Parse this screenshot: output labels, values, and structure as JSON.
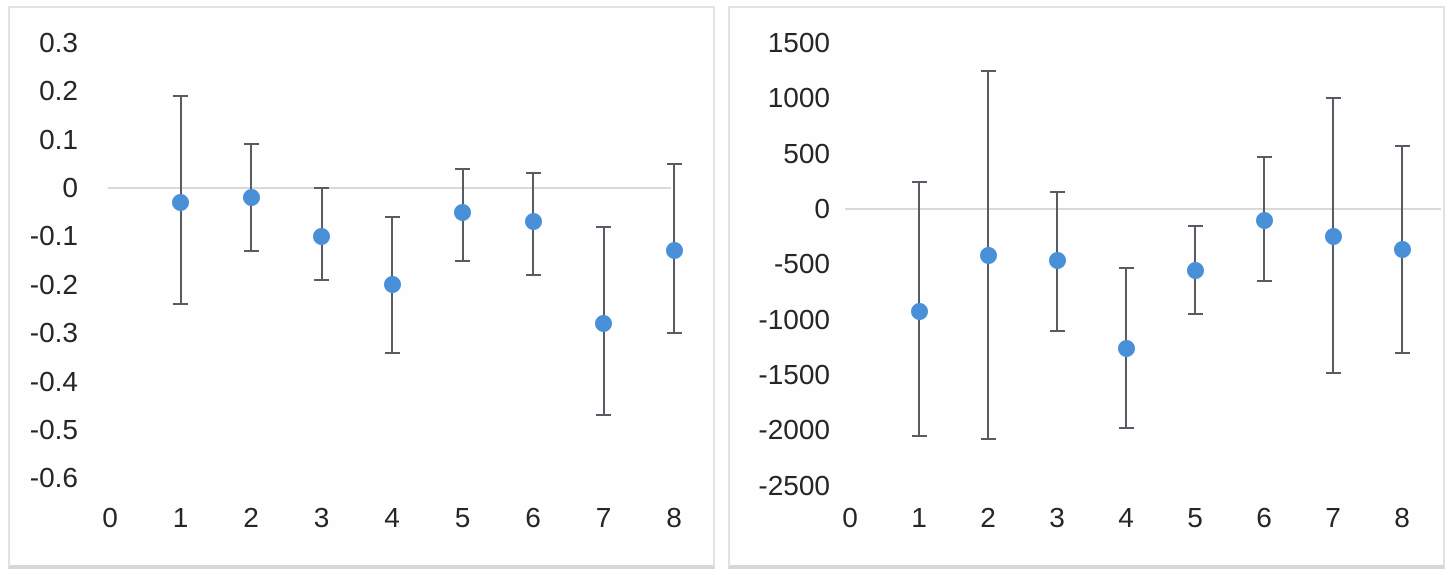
{
  "page": {
    "background": "#ffffff"
  },
  "colors": {
    "marker": "#4a90d8",
    "error_bar": "#585c62",
    "zero_gridline": "#d9d9d9",
    "panel_border": "#e4e1e4",
    "tick_text": "#262626"
  },
  "chart_data": [
    {
      "type": "scatter",
      "title": "",
      "xlabel": "",
      "ylabel": "",
      "legend": "none",
      "grid": "zero-line-only",
      "xlim": [
        0,
        8
      ],
      "ylim": [
        -0.6,
        0.3
      ],
      "xticks": [
        "0",
        "1",
        "2",
        "3",
        "4",
        "5",
        "6",
        "7",
        "8"
      ],
      "yticks": [
        "0.3",
        "0.2",
        "0.1",
        "0",
        "-0.1",
        "-0.2",
        "-0.3",
        "-0.4",
        "-0.5",
        "-0.6"
      ],
      "x": [
        1,
        2,
        3,
        4,
        5,
        6,
        7,
        8
      ],
      "series": [
        {
          "name": "point-estimate",
          "values": [
            -0.03,
            -0.02,
            -0.1,
            -0.2,
            -0.05,
            -0.07,
            -0.28,
            -0.13
          ],
          "error_high": [
            0.19,
            0.09,
            0.0,
            -0.06,
            0.04,
            0.03,
            -0.08,
            0.05
          ],
          "error_low": [
            -0.24,
            -0.13,
            -0.19,
            -0.34,
            -0.15,
            -0.18,
            -0.47,
            -0.3
          ]
        }
      ]
    },
    {
      "type": "scatter",
      "title": "",
      "xlabel": "",
      "ylabel": "",
      "legend": "none",
      "grid": "zero-line-only",
      "xlim": [
        0,
        8
      ],
      "ylim": [
        -2500,
        1500
      ],
      "xticks": [
        "0",
        "1",
        "2",
        "3",
        "4",
        "5",
        "6",
        "7",
        "8"
      ],
      "yticks": [
        "1500",
        "1000",
        "500",
        "0",
        "-500",
        "-1000",
        "-1500",
        "-2000",
        "-2500"
      ],
      "x": [
        1,
        2,
        3,
        4,
        5,
        6,
        7,
        8
      ],
      "series": [
        {
          "name": "point-estimate",
          "values": [
            -930,
            -420,
            -470,
            -1260,
            -560,
            -100,
            -250,
            -370
          ],
          "error_high": [
            240,
            1250,
            150,
            -530,
            -150,
            470,
            1000,
            570
          ],
          "error_low": [
            -2050,
            -2080,
            -1100,
            -1980,
            -950,
            -650,
            -1480,
            -1300
          ]
        }
      ]
    }
  ]
}
